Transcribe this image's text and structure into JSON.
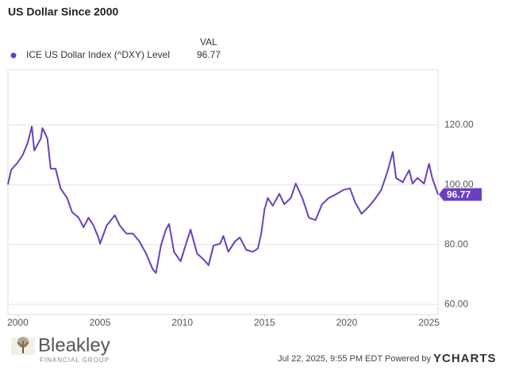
{
  "chart_data": {
    "type": "line",
    "title": "US Dollar Since 2000",
    "legend_header": "VAL",
    "series": [
      {
        "name": "ICE US Dollar Index (^DXY) Level",
        "color": "#6a3fc0",
        "values": [
          100.1,
          105,
          107.5,
          110,
          114,
          119.5,
          111.5,
          115.5,
          119,
          115.5,
          105.4,
          105.4,
          98.8,
          95.6,
          90.9,
          89,
          85.8,
          89,
          86.4,
          82.4,
          80.3,
          86.4,
          89.8,
          86.4,
          83.7,
          83.7,
          81,
          77,
          71.8,
          70.5,
          79.7,
          85,
          86.9,
          77.6,
          74.4,
          79.7,
          85,
          77,
          75,
          73.1,
          79.7,
          80.3,
          82.9,
          77.6,
          81,
          82.4,
          78.2,
          77.6,
          78.7,
          83.7,
          91.7,
          95.6,
          93,
          97,
          93.5,
          95.6,
          100.4,
          95.6,
          89,
          88.2,
          93.5,
          95.6,
          97,
          98.3,
          98.8,
          94.3,
          90.3,
          92.5,
          95.1,
          98.3,
          104.9,
          111,
          102.3,
          100.9,
          104.9,
          100.4,
          102.3,
          100.4,
          107,
          102.3,
          96.77
        ]
      }
    ],
    "x": [
      1999.4,
      1999.6,
      2000,
      2000.3,
      2000.6,
      2000.85,
      2001,
      2001.4,
      2001.5,
      2001.8,
      2002,
      2002.3,
      2002.6,
      2003,
      2003.3,
      2003.7,
      2004,
      2004.3,
      2004.6,
      2004.9,
      2005,
      2005.4,
      2005.9,
      2006.2,
      2006.6,
      2007,
      2007.4,
      2007.8,
      2008.2,
      2008.4,
      2008.7,
      2009,
      2009.2,
      2009.5,
      2009.9,
      2010.2,
      2010.5,
      2010.9,
      2011.3,
      2011.6,
      2011.9,
      2012.3,
      2012.5,
      2012.8,
      2013.2,
      2013.5,
      2013.9,
      2014.3,
      2014.6,
      2014.8,
      2015,
      2015.2,
      2015.5,
      2015.9,
      2016.2,
      2016.6,
      2016.9,
      2017.3,
      2017.7,
      2018.1,
      2018.5,
      2018.9,
      2019.4,
      2019.8,
      2020.2,
      2020.5,
      2020.9,
      2021.3,
      2021.7,
      2022.1,
      2022.5,
      2022.8,
      2023,
      2023.4,
      2023.8,
      2024,
      2024.3,
      2024.7,
      2025,
      2025.2,
      2025.55
    ],
    "xlim": [
      1999.4,
      2025.55
    ],
    "xticks": [
      2000,
      2005,
      2010,
      2015,
      2020,
      2025
    ],
    "ylim": [
      56.6,
      138.5
    ],
    "yticks": [
      {
        "value": 60,
        "label": "60.00"
      },
      {
        "value": 80,
        "label": "80.00"
      },
      {
        "value": 100,
        "label": "100.00"
      },
      {
        "value": 120,
        "label": "120.00"
      }
    ],
    "grid": true
  },
  "logo": {
    "name": "Bleakley",
    "tagline": "FINANCIAL GROUP"
  },
  "footer": {
    "timestamp": "Jul 22, 2025, 9:55 PM EDT Powered by",
    "brand": "YCHARTS"
  }
}
